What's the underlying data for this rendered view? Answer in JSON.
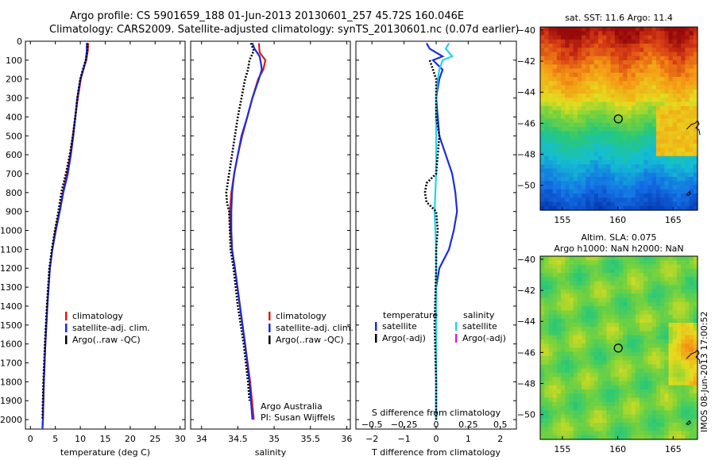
{
  "header": {
    "line1": "Argo profile: CS 5901659_188 01-Jun-2013 20130601_257 45.72S 160.046E",
    "line2": "Climatology: CARS2009. Satellite-adjusted climatology: synTS_20130601.nc (0.07d earlier)"
  },
  "side_stamp": "IMOS 08-Jun-2013 17:00:52",
  "colors": {
    "climatology": "#dd1c1c",
    "satellite": "#1a2edb",
    "argo": "#000000",
    "sal_satellite": "#22d3ee",
    "sal_argo": "#d020d0"
  },
  "chart_data": [
    {
      "id": "temperature",
      "type": "line",
      "xlabel": "temperature (deg C)",
      "ylabel": "",
      "xlim": [
        -1,
        31
      ],
      "ylim": [
        2050,
        0
      ],
      "xticks": [
        0,
        5,
        10,
        15,
        20,
        25,
        30
      ],
      "yticks": [
        0,
        100,
        200,
        300,
        400,
        500,
        600,
        700,
        800,
        900,
        1000,
        1100,
        1200,
        1300,
        1400,
        1500,
        1600,
        1700,
        1800,
        1900,
        2000
      ],
      "legend": [
        "climatology",
        "satellite-adj. clim.",
        "Argo(..raw -QC)"
      ],
      "series": [
        {
          "name": "climatology",
          "color_key": "climatology",
          "y": [
            10,
            50,
            100,
            150,
            200,
            300,
            400,
            500,
            600,
            700,
            800,
            900,
            1000,
            1100,
            1200,
            1400,
            1600,
            1800,
            2000,
            2050
          ],
          "x": [
            11.6,
            11.5,
            11.2,
            10.6,
            10.1,
            9.5,
            9.0,
            8.5,
            8.0,
            7.3,
            6.5,
            5.8,
            5.0,
            4.4,
            3.9,
            3.4,
            3.0,
            2.7,
            2.5,
            2.4
          ]
        },
        {
          "name": "satellite-adj. clim.",
          "color_key": "satellite",
          "y": [
            10,
            50,
            100,
            150,
            200,
            300,
            400,
            500,
            600,
            700,
            800,
            900,
            1000,
            1100,
            1200,
            1400,
            1600,
            1800,
            2000,
            2050
          ],
          "x": [
            11.3,
            11.3,
            11.1,
            10.6,
            10.0,
            9.4,
            9.0,
            8.6,
            8.1,
            7.5,
            6.6,
            5.9,
            5.1,
            4.4,
            3.9,
            3.4,
            3.0,
            2.7,
            2.5,
            2.4
          ]
        },
        {
          "name": "Argo(..raw -QC)",
          "color_key": "argo",
          "y": [
            10,
            50,
            100,
            150,
            200,
            300,
            400,
            500,
            600,
            700,
            800,
            900,
            1000,
            1100,
            1200,
            1400,
            1600,
            1800,
            2000
          ],
          "x": [
            11.4,
            11.4,
            11.1,
            10.5,
            10.0,
            9.4,
            9.0,
            8.5,
            7.9,
            7.1,
            6.2,
            5.6,
            4.9,
            4.3,
            3.8,
            3.3,
            2.9,
            2.6,
            2.4
          ]
        }
      ]
    },
    {
      "id": "salinity",
      "type": "line",
      "xlabel": "salinity",
      "ylabel": "",
      "xlim": [
        33.85,
        36.05
      ],
      "ylim": [
        2050,
        0
      ],
      "xticks": [
        34,
        34.5,
        35,
        35.5,
        36
      ],
      "xticklabels": [
        "34",
        "34.5",
        "35",
        "35.5",
        "36"
      ],
      "legend": [
        "climatology",
        "satellite-adj. clim.",
        "Argo(..raw -QC)"
      ],
      "annotation": [
        "Argo Australia",
        "PI: Susan Wijffels"
      ],
      "series": [
        {
          "name": "climatology",
          "color_key": "climatology",
          "y": [
            10,
            60,
            100,
            150,
            200,
            300,
            400,
            500,
            600,
            700,
            800,
            900,
            1000,
            1100,
            1200,
            1400,
            1600,
            1800,
            2000
          ],
          "x": [
            34.79,
            34.8,
            34.88,
            34.85,
            34.78,
            34.7,
            34.63,
            34.56,
            34.5,
            34.45,
            34.41,
            34.39,
            34.4,
            34.42,
            34.46,
            34.53,
            34.6,
            34.67,
            34.72
          ]
        },
        {
          "name": "satellite-adj. clim.",
          "color_key": "satellite",
          "y": [
            10,
            40,
            80,
            120,
            150,
            200,
            300,
            400,
            500,
            600,
            700,
            800,
            900,
            1000,
            1100,
            1200,
            1400,
            1600,
            1800,
            2000
          ],
          "x": [
            34.7,
            34.73,
            34.8,
            34.82,
            34.83,
            34.79,
            34.7,
            34.63,
            34.55,
            34.5,
            34.45,
            34.42,
            34.41,
            34.41,
            34.42,
            34.46,
            34.53,
            34.6,
            34.66,
            34.7
          ]
        },
        {
          "name": "Argo(..raw -QC)",
          "color_key": "argo",
          "y": [
            10,
            50,
            100,
            150,
            200,
            300,
            400,
            500,
            600,
            700,
            800,
            850,
            900,
            1000,
            1100,
            1200,
            1400,
            1600,
            1800,
            1900
          ],
          "x": [
            34.68,
            34.72,
            34.66,
            34.64,
            34.6,
            34.55,
            34.5,
            34.46,
            34.42,
            34.38,
            34.34,
            34.35,
            34.38,
            34.39,
            34.4,
            34.44,
            34.5,
            34.58,
            34.64,
            34.66
          ]
        }
      ]
    },
    {
      "id": "difference",
      "type": "line",
      "xlabel": "T difference from climatology",
      "xlabel_top": "S difference from climatology",
      "ylabel": "",
      "xlim": [
        -2.5,
        2.5
      ],
      "ylim": [
        2050,
        0
      ],
      "xticks": [
        -2,
        -1,
        0,
        1,
        2
      ],
      "xticklabels": [
        "−2",
        "−1",
        "0",
        "1",
        "2"
      ],
      "sticks": [
        -0.5,
        -0.25,
        0,
        0.25,
        0.5
      ],
      "sticklabels": [
        "−0.5",
        "−0.25",
        "0",
        "0.25",
        "0.5"
      ],
      "legend_temperature": {
        "title": "temperature",
        "items": [
          "satellite",
          "Argo(-adj)"
        ]
      },
      "legend_salinity": {
        "title": "salinity",
        "items": [
          "satellite",
          "Argo(-adj)"
        ]
      },
      "series": [
        {
          "name": "T satellite",
          "color_key": "satellite",
          "y": [
            10,
            40,
            80,
            100,
            150,
            200,
            300,
            400,
            500,
            600,
            700,
            800,
            900,
            1000,
            1100,
            1200,
            1300,
            1600,
            2000
          ],
          "x": [
            -0.3,
            -0.2,
            0.2,
            -0.1,
            0.2,
            0.1,
            0.0,
            0.05,
            0.1,
            0.3,
            0.5,
            0.6,
            0.65,
            0.55,
            0.4,
            0.1,
            0.0,
            0.0,
            0.0
          ]
        },
        {
          "name": "S satellite",
          "color_key": "sal_satellite",
          "y": [
            10,
            40,
            80,
            100,
            150,
            200,
            300,
            500,
            700,
            900,
            1100,
            1300,
            1600,
            2000
          ],
          "x": [
            0.4,
            0.3,
            0.5,
            0.2,
            0.1,
            0.05,
            0.0,
            0.0,
            0.0,
            -0.05,
            0.0,
            0.0,
            0.0,
            0.0
          ]
        },
        {
          "name": "T Argo(-adj)",
          "color_key": "argo",
          "y": [
            100,
            150,
            200,
            300,
            400,
            500,
            600,
            700,
            750,
            800,
            850,
            900,
            1000,
            1100,
            1200,
            1500,
            1800,
            2000
          ],
          "x": [
            -0.2,
            -0.1,
            0.0,
            0.0,
            0.0,
            0.1,
            0.05,
            0.0,
            -0.3,
            -0.35,
            -0.3,
            0.0,
            0.05,
            0.0,
            0.0,
            -0.05,
            0.0,
            0.0
          ]
        }
      ]
    },
    {
      "id": "sst_map",
      "type": "heatmap",
      "title": "sat. SST: 11.6 Argo: 11.4",
      "xlim": [
        153,
        167.2
      ],
      "ylim": [
        -51.6,
        -39.8
      ],
      "xticks": [
        155,
        160,
        165
      ],
      "yticks": [
        -40,
        -42,
        -44,
        -46,
        -48,
        -50
      ],
      "marker": {
        "lon": 160.046,
        "lat": -45.72
      }
    },
    {
      "id": "sla_map",
      "type": "heatmap",
      "title": "Altim. SLA: 0.075",
      "subtitle": "Argo h1000: NaN h2000: NaN",
      "xlim": [
        153,
        167.2
      ],
      "ylim": [
        -51.6,
        -39.8
      ],
      "xticks": [
        155,
        160,
        165
      ],
      "yticks": [
        -40,
        -42,
        -44,
        -46,
        -48,
        -50
      ],
      "marker": {
        "lon": 160.046,
        "lat": -45.72
      }
    }
  ]
}
